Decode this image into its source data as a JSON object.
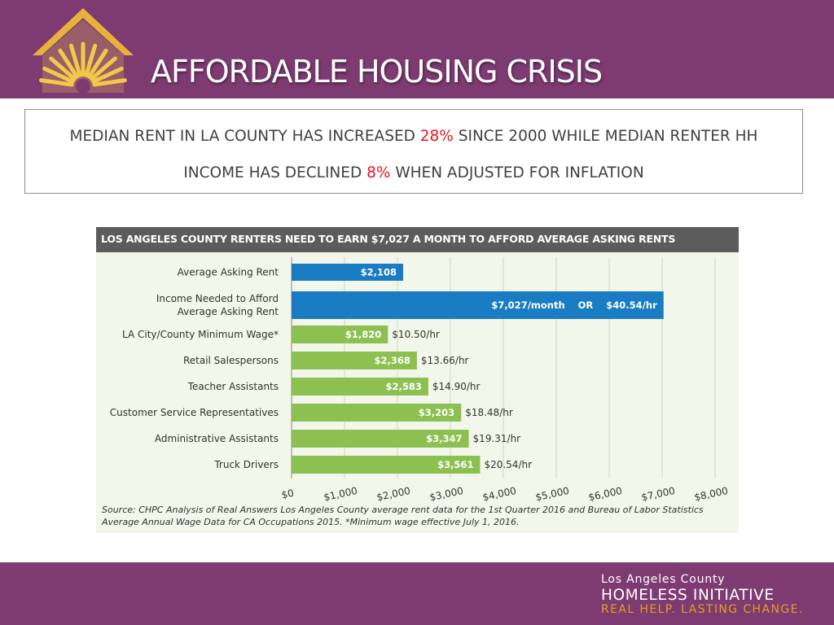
{
  "header": {
    "title": "AFFORDABLE HOUSING CRISIS",
    "brand_color": "#7d3b72",
    "logo_icon": "sunburst-house-icon"
  },
  "subtitle": {
    "line1_before": "MEDIAN RENT IN LA COUNTY HAS INCREASED ",
    "line1_pct": "28%",
    "line1_after": " SINCE 2000 WHILE MEDIAN RENTER HH",
    "line2_before": "INCOME HAS DECLINED ",
    "line2_pct": "8%",
    "line2_after": " WHEN ADJUSTED FOR INFLATION",
    "highlight_color": "#e8141e"
  },
  "chart_data": {
    "type": "bar",
    "orientation": "horizontal",
    "title": "LOS ANGELES COUNTY RENTERS  NEED TO EARN $7,027 A MONTH TO AFFORD AVERAGE ASKING RENTS",
    "categories": [
      [
        "Average Asking Rent"
      ],
      [
        "Income Needed to Afford",
        "Average Asking Rent"
      ],
      [
        "LA City/County Minimum Wage*"
      ],
      [
        "Retail Salespersons"
      ],
      [
        "Teacher Assistants"
      ],
      [
        "Customer Service Representatives"
      ],
      [
        "Administrative Assistants"
      ],
      [
        "Truck Drivers"
      ]
    ],
    "values": [
      2108,
      7027,
      1820,
      2368,
      2583,
      3203,
      3347,
      3561
    ],
    "bar_labels": [
      "$2,108",
      "$7,027/month    OR    $40.54/hr",
      "$1,820",
      "$2,368",
      "$2,583",
      "$3,203",
      "$3,347",
      "$3,561"
    ],
    "hourly_labels": [
      "",
      "",
      "$10.50/hr",
      "$13.66/hr",
      "$14.90/hr",
      "$18.48/hr",
      "$19.31/hr",
      "$20.54/hr"
    ],
    "colors": [
      "#1a7dc4",
      "#1a7dc4",
      "#8cc152",
      "#8cc152",
      "#8cc152",
      "#8cc152",
      "#8cc152",
      "#8cc152"
    ],
    "xlim": [
      0,
      8000
    ],
    "xticks": [
      0,
      1000,
      2000,
      3000,
      4000,
      5000,
      6000,
      7000,
      8000
    ],
    "xtick_labels": [
      "$0",
      "$1,000",
      "$2,000",
      "$3,000",
      "$4,000",
      "$5,000",
      "$6,000",
      "$7,000",
      "$8,000"
    ],
    "grid": true,
    "source": "Source: CHPC Analysis of Real Answers Los Angeles County average rent data for the 1st Quarter 2016 and Bureau of Labor Statistics Average Annual Wage Data for CA Occupations 2015. *Minimum wage effective July 1, 2016."
  },
  "footer": {
    "line1": "Los Angeles County",
    "line2": "HOMELESS INITIATIVE",
    "line3": "REAL HELP. LASTING CHANGE.",
    "tagline_color": "#e0a020"
  }
}
